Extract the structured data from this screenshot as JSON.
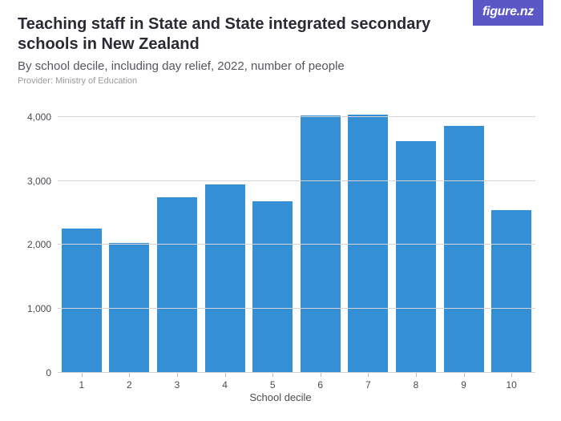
{
  "logo": {
    "text": "figure.nz"
  },
  "header": {
    "title": "Teaching staff in State and State integrated secondary schools in New Zealand",
    "subtitle": "By school decile, including day relief, 2022, number of people",
    "provider": "Provider: Ministry of Education"
  },
  "chart": {
    "type": "bar",
    "categories": [
      "1",
      "2",
      "3",
      "4",
      "5",
      "6",
      "7",
      "8",
      "9",
      "10"
    ],
    "values": [
      2260,
      2030,
      2740,
      2950,
      2680,
      4030,
      4040,
      3620,
      3860,
      2540
    ],
    "bar_color": "#348fd4",
    "background_color": "#ffffff",
    "grid_color": "#d4d4d8",
    "axis_text_color": "#4a4a52",
    "ylim": [
      0,
      4200
    ],
    "yticks": [
      0,
      1000,
      2000,
      3000,
      4000
    ],
    "ytick_labels": [
      "0",
      "1,000",
      "2,000",
      "3,000",
      "4,000"
    ],
    "x_axis_title": "School decile",
    "title_fontsize": 20,
    "subtitle_fontsize": 15,
    "provider_fontsize": 11,
    "axis_fontsize": 12,
    "bar_width": 0.84
  }
}
